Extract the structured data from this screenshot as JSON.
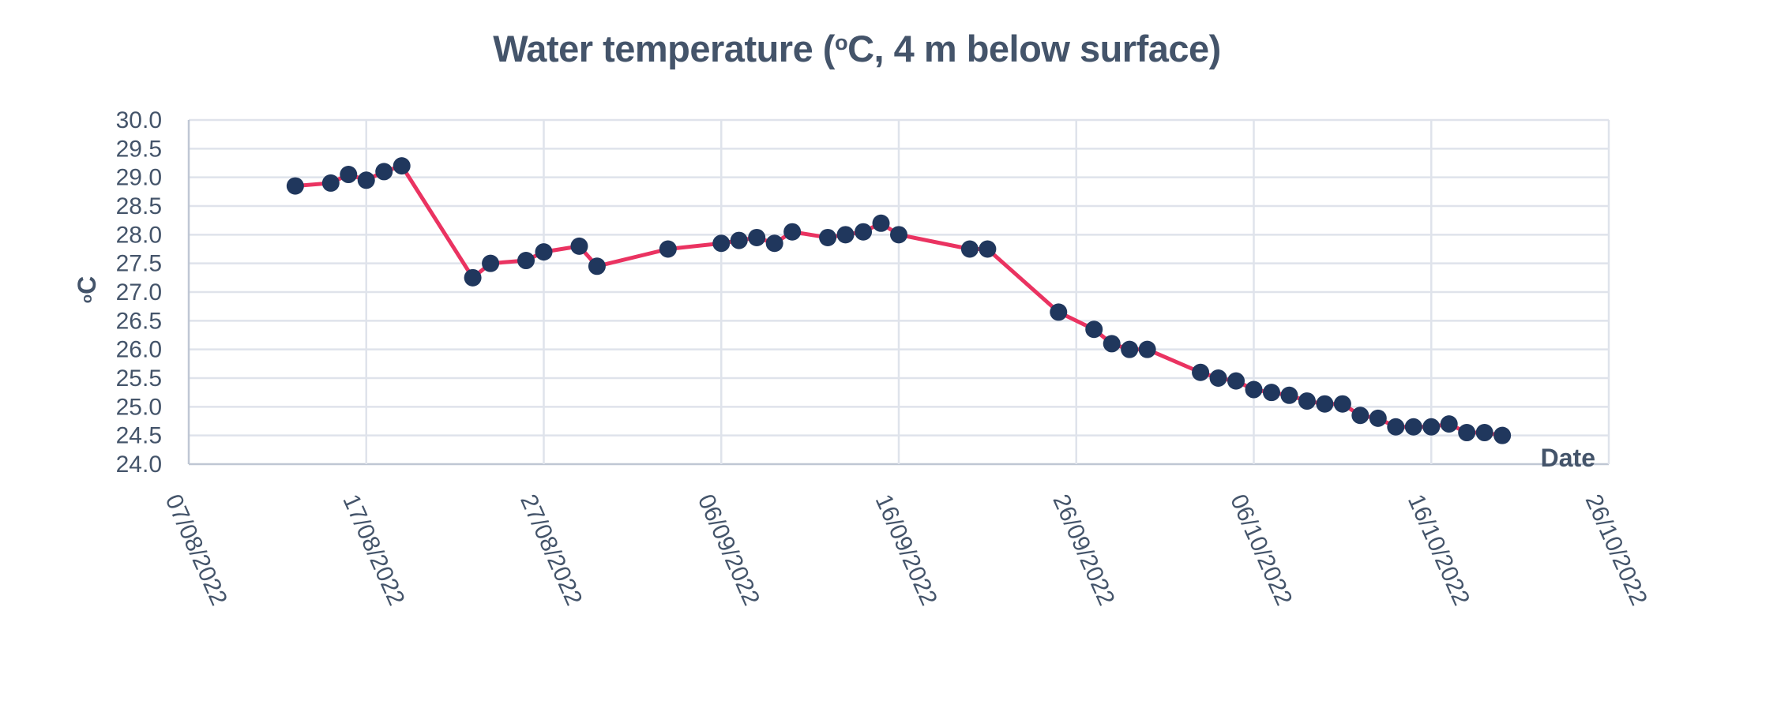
{
  "chart_data": {
    "type": "line",
    "title": {
      "text": "Water temperature (°C, 4 m below surface)",
      "prefix": "Water temperature (",
      "superscript": "o",
      "suffix": "C, 4 m below surface)"
    },
    "y_axis": {
      "label_text": "°C",
      "label_superscript": "o",
      "label_suffix": "C",
      "min": 24.0,
      "max": 30.0,
      "step": 0.5,
      "tick_labels": [
        "30.0",
        "29.5",
        "29.0",
        "28.5",
        "28.0",
        "27.5",
        "27.0",
        "26.5",
        "26.0",
        "25.5",
        "25.0",
        "24.5",
        "24.0"
      ]
    },
    "x_axis": {
      "label": "Date",
      "tick_labels": [
        "07/08/2022",
        "17/08/2022",
        "27/08/2022",
        "06/09/2022",
        "16/09/2022",
        "26/09/2022",
        "06/10/2022",
        "16/10/2022",
        "26/10/2022"
      ],
      "tick_interval_days": 10,
      "range_days": 80,
      "tick_label_rotation_deg": 66
    },
    "grid": true,
    "legend": false,
    "colors": {
      "line": "#ea3361",
      "marker": "#20375d",
      "text": "#44546a",
      "grid": "#dfe3eb",
      "axis": "#bfc7d4"
    },
    "series": [
      {
        "name": "Water temperature",
        "points": [
          {
            "date": "13/08/2022",
            "day": 6,
            "temp": 28.85
          },
          {
            "date": "15/08/2022",
            "day": 8,
            "temp": 28.9
          },
          {
            "date": "16/08/2022",
            "day": 9,
            "temp": 29.05
          },
          {
            "date": "17/08/2022",
            "day": 10,
            "temp": 28.95
          },
          {
            "date": "18/08/2022",
            "day": 11,
            "temp": 29.1
          },
          {
            "date": "19/08/2022",
            "day": 12,
            "temp": 29.2
          },
          {
            "date": "23/08/2022",
            "day": 16,
            "temp": 27.25
          },
          {
            "date": "24/08/2022",
            "day": 17,
            "temp": 27.5
          },
          {
            "date": "26/08/2022",
            "day": 19,
            "temp": 27.55
          },
          {
            "date": "27/08/2022",
            "day": 20,
            "temp": 27.7
          },
          {
            "date": "29/08/2022",
            "day": 22,
            "temp": 27.8
          },
          {
            "date": "30/08/2022",
            "day": 23,
            "temp": 27.45
          },
          {
            "date": "03/09/2022",
            "day": 27,
            "temp": 27.75
          },
          {
            "date": "06/09/2022",
            "day": 30,
            "temp": 27.85
          },
          {
            "date": "07/09/2022",
            "day": 31,
            "temp": 27.9
          },
          {
            "date": "08/09/2022",
            "day": 32,
            "temp": 27.95
          },
          {
            "date": "09/09/2022",
            "day": 33,
            "temp": 27.85
          },
          {
            "date": "10/09/2022",
            "day": 34,
            "temp": 28.05
          },
          {
            "date": "12/09/2022",
            "day": 36,
            "temp": 27.95
          },
          {
            "date": "13/09/2022",
            "day": 37,
            "temp": 28.0
          },
          {
            "date": "14/09/2022",
            "day": 38,
            "temp": 28.05
          },
          {
            "date": "15/09/2022",
            "day": 39,
            "temp": 28.2
          },
          {
            "date": "16/09/2022",
            "day": 40,
            "temp": 28.0
          },
          {
            "date": "20/09/2022",
            "day": 44,
            "temp": 27.75
          },
          {
            "date": "21/09/2022",
            "day": 45,
            "temp": 27.75
          },
          {
            "date": "25/09/2022",
            "day": 49,
            "temp": 26.65
          },
          {
            "date": "27/09/2022",
            "day": 51,
            "temp": 26.35
          },
          {
            "date": "28/09/2022",
            "day": 52,
            "temp": 26.1
          },
          {
            "date": "29/09/2022",
            "day": 53,
            "temp": 26.0
          },
          {
            "date": "30/09/2022",
            "day": 54,
            "temp": 26.0
          },
          {
            "date": "03/10/2022",
            "day": 57,
            "temp": 25.6
          },
          {
            "date": "04/10/2022",
            "day": 58,
            "temp": 25.5
          },
          {
            "date": "05/10/2022",
            "day": 59,
            "temp": 25.45
          },
          {
            "date": "06/10/2022",
            "day": 60,
            "temp": 25.3
          },
          {
            "date": "07/10/2022",
            "day": 61,
            "temp": 25.25
          },
          {
            "date": "08/10/2022",
            "day": 62,
            "temp": 25.2
          },
          {
            "date": "09/10/2022",
            "day": 63,
            "temp": 25.1
          },
          {
            "date": "10/10/2022",
            "day": 64,
            "temp": 25.05
          },
          {
            "date": "11/10/2022",
            "day": 65,
            "temp": 25.05
          },
          {
            "date": "12/10/2022",
            "day": 66,
            "temp": 24.85
          },
          {
            "date": "13/10/2022",
            "day": 67,
            "temp": 24.8
          },
          {
            "date": "14/10/2022",
            "day": 68,
            "temp": 24.65
          },
          {
            "date": "15/10/2022",
            "day": 69,
            "temp": 24.65
          },
          {
            "date": "16/10/2022",
            "day": 70,
            "temp": 24.65
          },
          {
            "date": "17/10/2022",
            "day": 71,
            "temp": 24.7
          },
          {
            "date": "18/10/2022",
            "day": 72,
            "temp": 24.55
          },
          {
            "date": "19/10/2022",
            "day": 73,
            "temp": 24.55
          },
          {
            "date": "20/10/2022",
            "day": 74,
            "temp": 24.5
          }
        ]
      }
    ]
  }
}
